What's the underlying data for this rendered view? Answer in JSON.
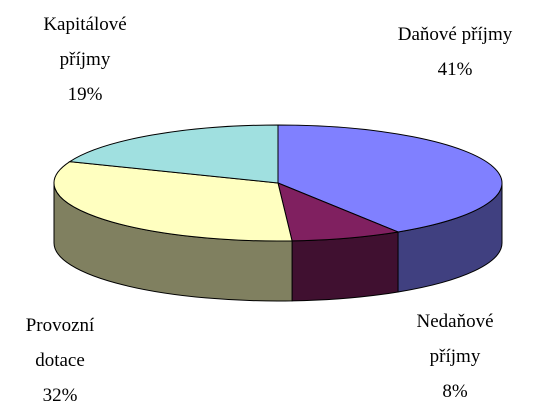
{
  "chart_data": {
    "type": "pie",
    "categories": [
      "Daňové příjmy",
      "Nedaňové příjmy",
      "Provozní dotace",
      "Kapitálové příjmy"
    ],
    "values": [
      41,
      8,
      32,
      19
    ],
    "value_labels": [
      "41%",
      "8%",
      "32%",
      "19%"
    ],
    "colors": [
      "#8080ff",
      "#802060",
      "#ffffc0",
      "#a0e0e0"
    ]
  }
}
